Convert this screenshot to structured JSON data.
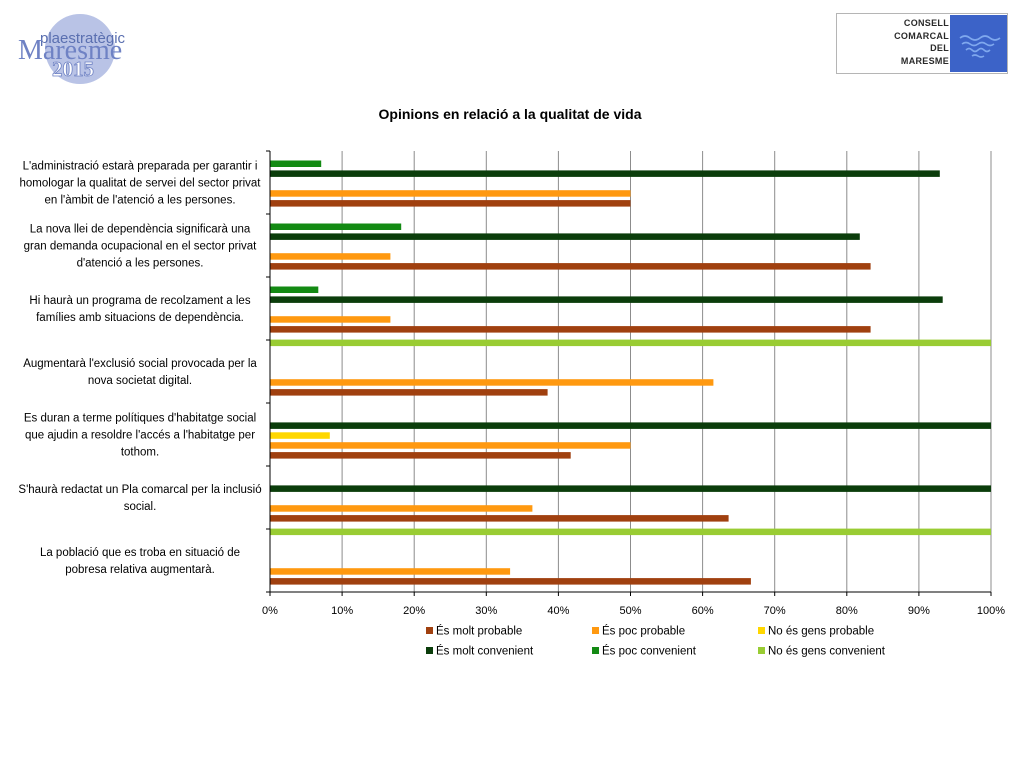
{
  "header": {
    "left_logo": {
      "line1": "plaestratègic",
      "line2": "Maresme",
      "line3": "2015"
    },
    "right_logo": {
      "lines": [
        "CONSELL",
        "COMARCAL",
        "DEL",
        "MARESME"
      ]
    }
  },
  "colors": {
    "molt_probable": "#a0400f",
    "poc_probable": "#ff9910",
    "gens_probable": "#ffd700",
    "molt_convenient": "#0b3d0b",
    "poc_convenient": "#138a13",
    "gens_convenient": "#99cc33",
    "emblem_blue": "#3c63c8"
  },
  "chart_data": {
    "type": "bar",
    "orientation": "horizontal",
    "title": "Opinions en relació a la qualitat de vida",
    "xlim": [
      0,
      100
    ],
    "xtick_labels": [
      "0%",
      "10%",
      "20%",
      "30%",
      "40%",
      "50%",
      "60%",
      "70%",
      "80%",
      "90%",
      "100%"
    ],
    "grid": true,
    "legend_position": "bottom",
    "categories": [
      [
        "L'administració estarà preparada per garantir i",
        "homologar la qualitat de servei del sector privat",
        "en l'àmbit de l'atenció a les persones."
      ],
      [
        "La nova llei de dependència significarà una",
        "gran demanda ocupacional en el sector privat",
        "d'atenció a les persones."
      ],
      [
        "Hi haurà un programa de recolzament a les",
        "famílies amb situacions de dependència."
      ],
      [
        "Augmentarà l'exclusió social provocada per la",
        "nova societat digital."
      ],
      [
        "Es duran a terme polítiques d'habitatge social",
        "que ajudin a resoldre l'accés a l'habitatge per",
        "tothom."
      ],
      [
        "S'haurà redactat un Pla comarcal per la inclusió",
        "social."
      ],
      [
        "La població que es troba en situació de",
        "pobresa relativa augmentarà."
      ]
    ],
    "series": [
      {
        "name": "És molt probable",
        "values": [
          50,
          83.3,
          83.3,
          38.5,
          41.7,
          63.6,
          66.7
        ]
      },
      {
        "name": "És poc probable",
        "values": [
          50,
          16.7,
          16.7,
          61.5,
          50,
          36.4,
          33.3
        ]
      },
      {
        "name": "No és gens probable",
        "values": [
          0,
          0,
          0,
          0,
          8.3,
          0,
          0
        ]
      },
      {
        "name": "És molt convenient",
        "values": [
          92.9,
          81.8,
          93.3,
          0,
          100,
          100,
          0
        ]
      },
      {
        "name": "És poc convenient",
        "values": [
          7.1,
          18.2,
          6.7,
          0,
          0,
          0,
          0
        ]
      },
      {
        "name": "No és gens convenient",
        "values": [
          0,
          0,
          0,
          100,
          0,
          0,
          100
        ]
      }
    ]
  }
}
